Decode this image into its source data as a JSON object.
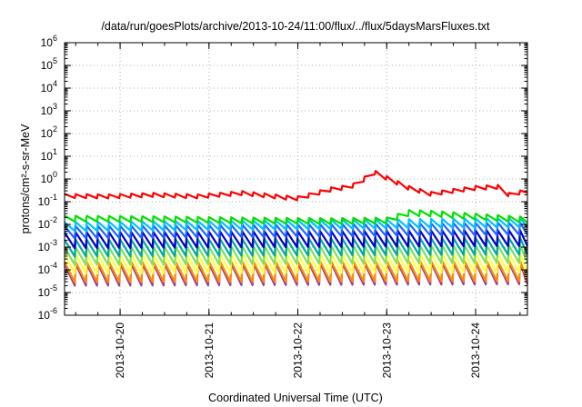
{
  "chart_data": {
    "type": "line",
    "title": "/data/run/goesPlots/archive/2013-10-24/11:00/flux/../flux/5daysMarsFluxes.txt",
    "xlabel": "Coordinated Universal Time (UTC)",
    "ylabel": "protons/cm²-s-sr-MeV",
    "y_scale": "log",
    "ylim": [
      1e-06,
      1000000.0
    ],
    "xlim": [
      "2013-10-19 09:00",
      "2013-10-24 14:00"
    ],
    "x_ticks": [
      "2013-10-20",
      "2013-10-21",
      "2013-10-22",
      "2013-10-23",
      "2013-10-24"
    ],
    "y_ticks": [
      {
        "base": "10",
        "exp": "-6"
      },
      {
        "base": "10",
        "exp": "-5"
      },
      {
        "base": "10",
        "exp": "-4"
      },
      {
        "base": "10",
        "exp": "-3"
      },
      {
        "base": "10",
        "exp": "-2"
      },
      {
        "base": "10",
        "exp": "-1"
      },
      {
        "base": "10",
        "exp": "0"
      },
      {
        "base": "10",
        "exp": "1"
      },
      {
        "base": "10",
        "exp": "2"
      },
      {
        "base": "10",
        "exp": "3"
      },
      {
        "base": "10",
        "exp": "4"
      },
      {
        "base": "10",
        "exp": "5"
      },
      {
        "base": "10",
        "exp": "6"
      }
    ],
    "grid": true,
    "grid_style": "dotted",
    "legend": "none",
    "series": [
      {
        "color": "#ff0000",
        "x": [
          "2013-10-19 09:00",
          "2013-10-19 21:00",
          "2013-10-20 09:00",
          "2013-10-20 21:00",
          "2013-10-21 09:00",
          "2013-10-21 21:00",
          "2013-10-22 00:00",
          "2013-10-22 09:00",
          "2013-10-22 14:00",
          "2013-10-22 17:00",
          "2013-10-22 20:00",
          "2013-10-23 00:00",
          "2013-10-23 06:00",
          "2013-10-23 12:00",
          "2013-10-23 18:00",
          "2013-10-24 00:00",
          "2013-10-24 06:00",
          "2013-10-24 09:00",
          "2013-10-24 14:00"
        ],
        "y": [
          0.18,
          0.17,
          0.2,
          0.17,
          0.24,
          0.15,
          0.14,
          0.35,
          0.45,
          0.7,
          2.2,
          1.1,
          0.4,
          0.22,
          0.3,
          0.4,
          0.45,
          0.2,
          0.3
        ],
        "sawtooth_ratio": 1.5
      },
      {
        "color": "#00e000",
        "x": [
          "2013-10-19 09:00",
          "2013-10-20 09:00",
          "2013-10-21 09:00",
          "2013-10-22 09:00",
          "2013-10-23 00:00",
          "2013-10-23 06:00",
          "2013-10-23 12:00",
          "2013-10-24 00:00",
          "2013-10-24 14:00"
        ],
        "y": [
          0.018,
          0.017,
          0.015,
          0.014,
          0.015,
          0.032,
          0.03,
          0.022,
          0.016
        ],
        "sawtooth_ratio": 1.8
      },
      {
        "color": "#00c0ff",
        "x": [
          "2013-10-19 09:00",
          "2013-10-24 14:00"
        ],
        "y": [
          0.008,
          0.012
        ],
        "sawtooth_ratio": 2.5
      },
      {
        "color": "#1e64ff",
        "x": [
          "2013-10-19 09:00",
          "2013-10-24 14:00"
        ],
        "y": [
          0.0045,
          0.0065
        ],
        "sawtooth_ratio": 3.5
      },
      {
        "color": "#0000c8",
        "x": [
          "2013-10-19 09:00",
          "2013-10-24 14:00"
        ],
        "y": [
          0.002,
          0.0025
        ],
        "sawtooth_ratio": 5
      },
      {
        "color": "#00a8a0",
        "x": [
          "2013-10-19 09:00",
          "2013-10-24 14:00"
        ],
        "y": [
          0.0009,
          0.0011
        ],
        "sawtooth_ratio": 5.5
      },
      {
        "color": "#7fe05a",
        "x": [
          "2013-10-19 09:00",
          "2013-10-24 14:00"
        ],
        "y": [
          0.0004,
          0.0005
        ],
        "sawtooth_ratio": 6
      },
      {
        "color": "#ffff40",
        "x": [
          "2013-10-19 09:00",
          "2013-10-24 14:00"
        ],
        "y": [
          0.00018,
          0.0002
        ],
        "sawtooth_ratio": 7
      },
      {
        "color": "#ff8c00",
        "x": [
          "2013-10-19 09:00",
          "2013-10-24 14:00"
        ],
        "y": [
          8e-05,
          9e-05
        ],
        "sawtooth_ratio": 8
      },
      {
        "color": "#9a3c9a",
        "x": [
          "2013-10-19 09:00",
          "2013-10-24 14:00"
        ],
        "y": [
          6e-05,
          7e-05
        ],
        "sawtooth_ratio": 9
      }
    ]
  }
}
